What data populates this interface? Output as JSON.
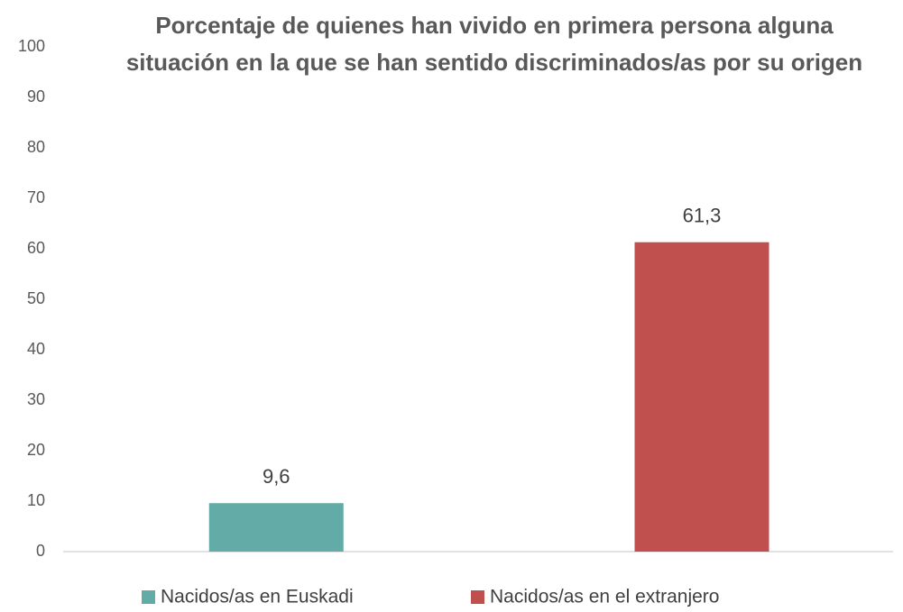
{
  "chart_data": {
    "type": "bar",
    "title": "Porcentaje de quienes han vivido en primera persona alguna situación en la que se han sentido discriminados/as por su origen",
    "categories": [
      null
    ],
    "series": [
      {
        "name": "Nacidos/as en Euskadi",
        "color": "#62aba6",
        "values": [
          9.6
        ],
        "value_labels": [
          "9,6"
        ]
      },
      {
        "name": "Nacidos/as en el extranjero",
        "color": "#c0504d",
        "values": [
          61.3
        ],
        "value_labels": [
          "61,3"
        ]
      }
    ],
    "ylim": [
      0,
      100
    ],
    "yticks": [
      0,
      10,
      20,
      30,
      40,
      50,
      60,
      70,
      80,
      90,
      100
    ],
    "grid": false,
    "legend": "bottom"
  }
}
